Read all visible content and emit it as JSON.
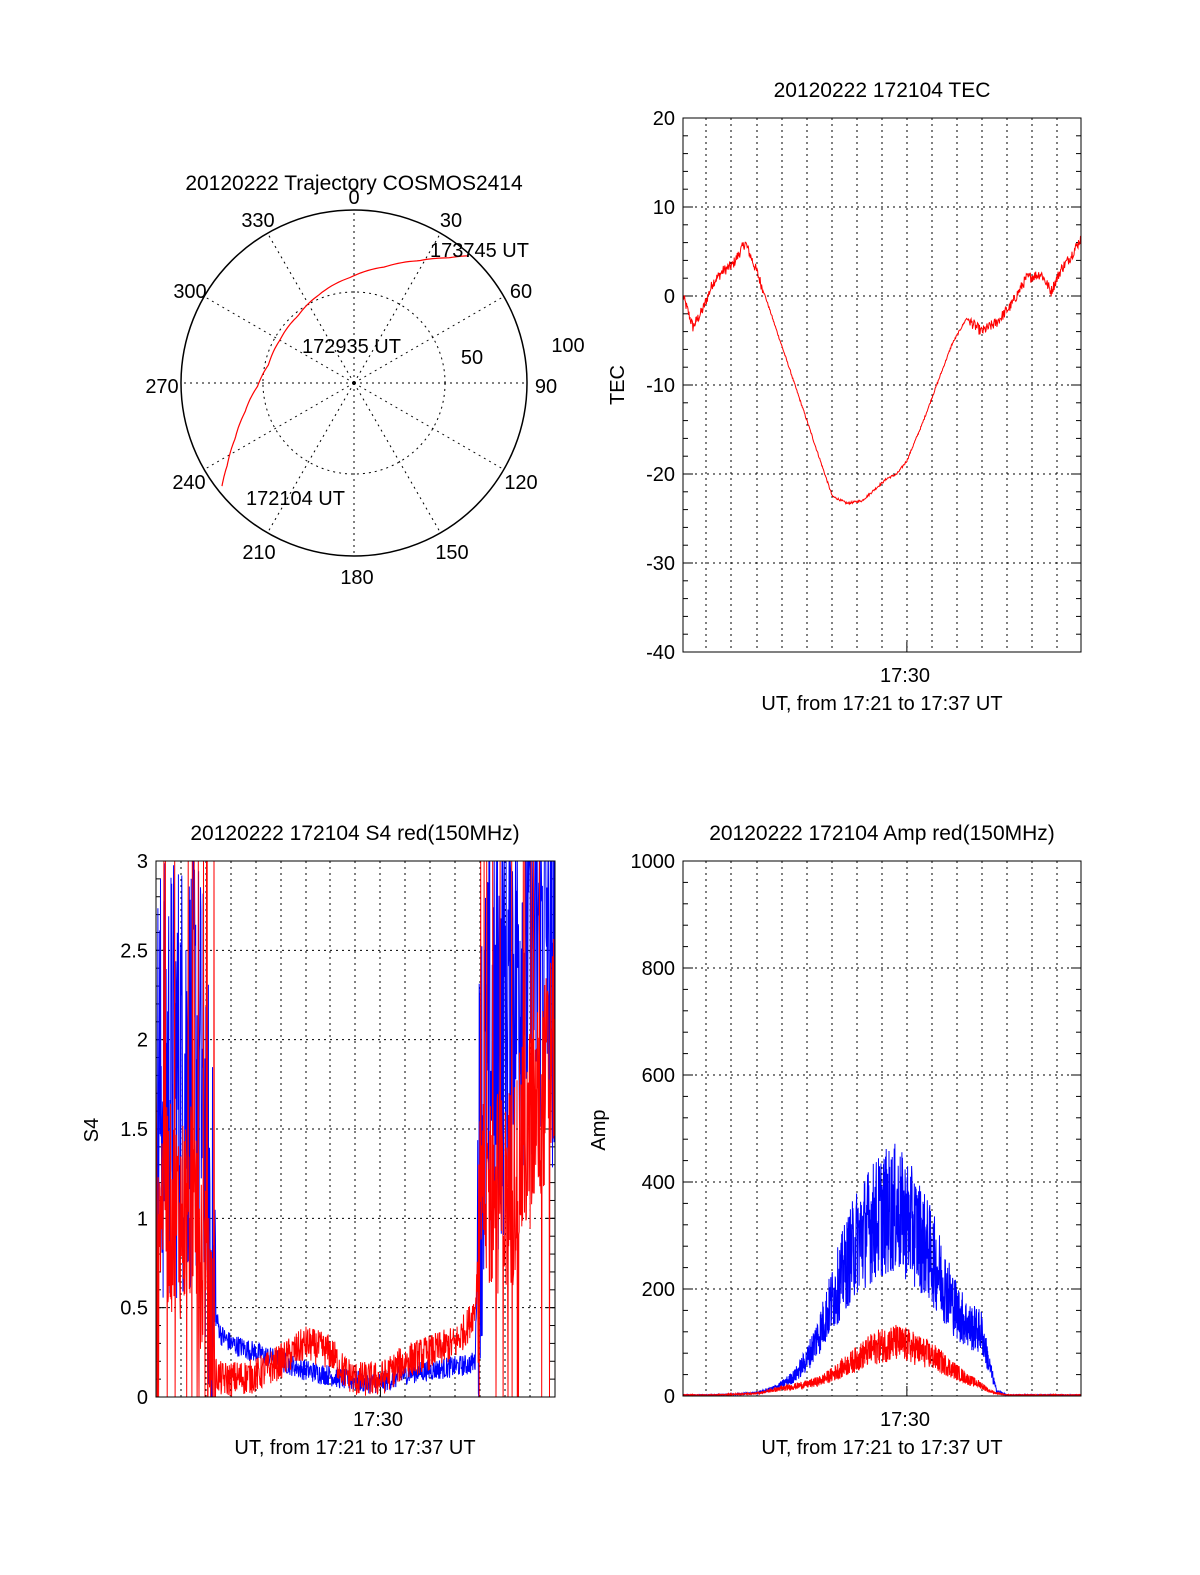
{
  "colors": {
    "red": "#ff0000",
    "blue": "#0000ff"
  },
  "chart_data": [
    {
      "id": "trajectory",
      "type": "polar",
      "title": "20120222 Trajectory COSMOS2414",
      "azimuth_labels": [
        "0",
        "30",
        "60",
        "90",
        "120",
        "150",
        "180",
        "210",
        "240",
        "270",
        "300",
        "330"
      ],
      "radius_labels": [
        "50",
        "100"
      ],
      "annotations": [
        "173745 UT",
        "172935 UT",
        "172104 UT"
      ],
      "track": {
        "name": "",
        "color": "red",
        "azimuth_deg": [
          232,
          237,
          245,
          255,
          268,
          282,
          300,
          320,
          338,
          358,
          15,
          28,
          37,
          42
        ],
        "zenith_deg": [
          92,
          83,
          72,
          62,
          53,
          48,
          47,
          48,
          52,
          58,
          66,
          76,
          86,
          94
        ]
      }
    },
    {
      "id": "tec",
      "type": "line",
      "title": "20120222 172104 TEC",
      "ylabel": "TEC",
      "xlabel": "UT, from 17:21 to 17:37 UT",
      "x_tick_labels": [
        "17:30"
      ],
      "y_tick_labels": [
        "20",
        "10",
        "0",
        "-10",
        "-20",
        "-30",
        "-40"
      ],
      "xlim": [
        "17:21",
        "17:37"
      ],
      "ylim": [
        -40,
        20
      ],
      "grid": true,
      "series": [
        {
          "name": "",
          "color": "red",
          "x_min": [
            21.0,
            21.4,
            21.8,
            22.2,
            22.6,
            23.0,
            23.5,
            24.0,
            24.6,
            25.2,
            25.8,
            26.4,
            27.0,
            27.6,
            28.2,
            28.8,
            29.2,
            29.6,
            30.0,
            30.6,
            31.2,
            31.8,
            32.4,
            33.0,
            33.6,
            34.2,
            34.8,
            35.4,
            35.8,
            36.2,
            36.6,
            37.0
          ],
          "values": [
            0,
            -3.5,
            -1.5,
            1.5,
            2.8,
            3.5,
            6.0,
            2.5,
            -2.5,
            -7.5,
            -12.5,
            -17.5,
            -22.5,
            -23.3,
            -23.0,
            -21.5,
            -20.5,
            -20.0,
            -18.5,
            -14.5,
            -10.0,
            -5.5,
            -2.5,
            -4.0,
            -3.0,
            -1.0,
            2.0,
            2.5,
            0.5,
            3.0,
            4.5,
            6.5
          ]
        }
      ]
    },
    {
      "id": "s4",
      "type": "line",
      "title": "20120222 172104 S4 red(150MHz)",
      "ylabel": "S4",
      "xlabel": "UT, from 17:21 to 17:37 UT",
      "x_tick_labels": [
        "17:30"
      ],
      "y_tick_labels": [
        "3",
        "2.5",
        "2",
        "1.5",
        "1",
        "0.5",
        "0"
      ],
      "xlim": [
        "17:21",
        "17:37"
      ],
      "ylim": [
        0,
        3
      ],
      "grid": true,
      "series": [
        {
          "name": "",
          "color": "blue",
          "x_min": [
            21.0,
            21.8,
            22.6,
            23.0,
            23.3,
            23.6,
            24.0,
            25.0,
            26.0,
            27.0,
            28.0,
            28.5,
            29.0,
            29.5,
            30.0,
            30.5,
            31.0,
            32.0,
            33.0,
            33.5,
            33.8,
            34.0,
            34.5,
            35.0,
            35.5,
            36.0,
            36.5,
            37.0
          ],
          "values": [
            1.7,
            1.8,
            1.9,
            1.5,
            0.5,
            0.35,
            0.3,
            0.25,
            0.2,
            0.15,
            0.12,
            0.1,
            0.09,
            0.08,
            0.08,
            0.1,
            0.13,
            0.15,
            0.17,
            0.18,
            0.2,
            1.5,
            1.9,
            2.2,
            2.5,
            2.6,
            2.7,
            2.5
          ]
        },
        {
          "name": "",
          "color": "red",
          "x_min": [
            21.0,
            21.8,
            22.6,
            23.0,
            23.3,
            23.6,
            24.0,
            25.0,
            26.0,
            27.0,
            28.0,
            28.5,
            29.0,
            29.5,
            30.0,
            30.5,
            31.0,
            32.0,
            33.0,
            33.5,
            33.8,
            34.0,
            34.5,
            35.0,
            35.5,
            36.0,
            36.5,
            37.0
          ],
          "values": [
            1.2,
            1.0,
            1.1,
            0.6,
            0.15,
            0.1,
            0.1,
            0.12,
            0.2,
            0.3,
            0.25,
            0.15,
            0.1,
            0.1,
            0.1,
            0.15,
            0.2,
            0.25,
            0.3,
            0.4,
            0.5,
            1.0,
            1.2,
            1.1,
            1.3,
            1.5,
            1.7,
            2.0
          ]
        }
      ]
    },
    {
      "id": "amp",
      "type": "line",
      "title": "20120222 172104 Amp red(150MHz)",
      "ylabel": "Amp",
      "xlabel": "UT, from 17:21 to 17:37 UT",
      "x_tick_labels": [
        "17:30"
      ],
      "y_tick_labels": [
        "1000",
        "800",
        "600",
        "400",
        "200",
        "0"
      ],
      "xlim": [
        "17:21",
        "17:37"
      ],
      "ylim": [
        0,
        1000
      ],
      "grid": true,
      "series": [
        {
          "name": "",
          "color": "blue",
          "x_min": [
            21.0,
            22.0,
            23.0,
            24.0,
            24.5,
            25.0,
            25.5,
            26.0,
            26.5,
            27.0,
            27.5,
            28.0,
            28.5,
            29.0,
            29.5,
            30.0,
            30.5,
            31.0,
            31.5,
            32.0,
            32.5,
            33.0,
            33.3,
            33.6,
            34.0,
            35.0,
            36.0,
            37.0
          ],
          "values": [
            2,
            2,
            3,
            6,
            12,
            22,
            38,
            70,
            120,
            180,
            240,
            290,
            320,
            340,
            350,
            330,
            300,
            260,
            210,
            160,
            130,
            120,
            60,
            10,
            2,
            2,
            2,
            2
          ]
        },
        {
          "name": "",
          "color": "red",
          "x_min": [
            21.0,
            22.0,
            23.0,
            24.0,
            24.5,
            25.0,
            25.5,
            26.0,
            26.5,
            27.0,
            27.5,
            28.0,
            28.5,
            29.0,
            29.5,
            30.0,
            30.5,
            31.0,
            31.5,
            32.0,
            32.5,
            33.0,
            33.3,
            33.6,
            34.0,
            35.0,
            36.0,
            37.0
          ],
          "values": [
            2,
            2,
            3,
            5,
            10,
            14,
            18,
            22,
            28,
            40,
            55,
            70,
            85,
            95,
            100,
            95,
            85,
            75,
            60,
            45,
            30,
            20,
            10,
            5,
            2,
            2,
            2,
            2
          ]
        }
      ]
    }
  ]
}
